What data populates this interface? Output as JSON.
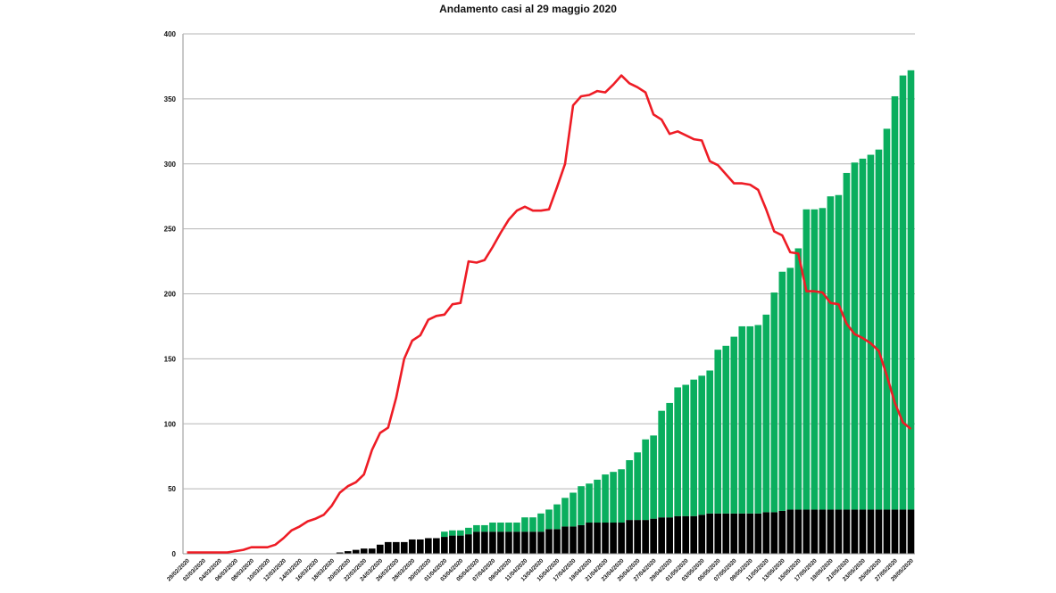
{
  "chart_data": {
    "type": "bar",
    "stacked": true,
    "title": "Andamento casi al  29 maggio 2020",
    "xlabel": "",
    "ylabel": "",
    "ylim": [
      0,
      400
    ],
    "y_ticks": [
      0,
      50,
      100,
      150,
      200,
      250,
      300,
      350,
      400
    ],
    "grid": true,
    "legend": "none",
    "x_tick_labels": [
      "29/02/2020",
      "02/03/2020",
      "04/03/2020",
      "06/03/2020",
      "08/03/2020",
      "10/03/2020",
      "12/03/2020",
      "14/03/2020",
      "16/03/2020",
      "18/03/2020",
      "20/03/2020",
      "22/03/2020",
      "24/03/2020",
      "26/03/2020",
      "28/03/2020",
      "30/03/2020",
      "01/04/2020",
      "03/04/2020",
      "05/04/2020",
      "07/04/2020",
      "09/04/2020",
      "11/04/2020",
      "13/04/2020",
      "15/04/2020",
      "17/04/2020",
      "19/04/2020",
      "21/04/2020",
      "23/04/2020",
      "25/04/2020",
      "27/04/2020",
      "29/04/2020",
      "01/05/2020",
      "03/05/2020",
      "05/05/2020",
      "07/05/2020",
      "09/05/2020",
      "11/05/2020",
      "13/05/2020",
      "15/05/2020",
      "17/05/2020",
      "19/05/2020",
      "21/05/2020",
      "23/05/2020",
      "25/05/2020",
      "27/05/2020",
      "29/05/2020"
    ],
    "series": [
      {
        "type": "bar",
        "color": "#000000",
        "values": [
          0,
          0,
          0,
          0,
          0,
          0,
          0,
          0,
          0,
          0,
          0,
          0,
          0,
          0,
          0,
          0,
          0,
          0,
          0,
          1,
          2,
          3,
          4,
          4,
          7,
          9,
          9,
          9,
          11,
          11,
          12,
          12,
          13,
          14,
          14,
          15,
          17,
          17,
          17,
          17,
          17,
          17,
          17,
          17,
          17,
          19,
          19,
          21,
          21,
          22,
          24,
          24,
          24,
          24,
          24,
          26,
          26,
          26,
          27,
          28,
          28,
          29,
          29,
          29,
          30,
          31,
          31,
          31,
          31,
          31,
          31,
          31,
          32,
          32,
          33,
          34,
          34,
          34,
          34,
          34,
          34,
          34,
          34,
          34,
          34,
          34,
          34,
          34,
          34,
          34,
          34
        ]
      },
      {
        "type": "bar",
        "color": "#0aae5e",
        "values": [
          0,
          0,
          0,
          0,
          0,
          0,
          0,
          0,
          0,
          0,
          0,
          0,
          0,
          0,
          0,
          0,
          0,
          0,
          0,
          0,
          0,
          0,
          0,
          0,
          0,
          0,
          0,
          0,
          0,
          0,
          0,
          0,
          4,
          4,
          4,
          5,
          5,
          5,
          7,
          7,
          7,
          7,
          11,
          11,
          14,
          15,
          19,
          22,
          26,
          30,
          30,
          33,
          37,
          39,
          41,
          46,
          52,
          62,
          64,
          82,
          88,
          99,
          101,
          105,
          107,
          110,
          126,
          129,
          136,
          144,
          144,
          145,
          152,
          169,
          184,
          186,
          201,
          231,
          231,
          232,
          241,
          242,
          259,
          267,
          270,
          273,
          277,
          293,
          318,
          334,
          338
        ]
      },
      {
        "type": "line",
        "color": "#ee1c25",
        "values": [
          1,
          1,
          1,
          1,
          1,
          1,
          2,
          3,
          5,
          5,
          5,
          7,
          12,
          18,
          21,
          25,
          27,
          30,
          37,
          47,
          52,
          55,
          61,
          80,
          93,
          97,
          120,
          150,
          164,
          168,
          180,
          183,
          184,
          192,
          193,
          225,
          224,
          226,
          236,
          247,
          257,
          264,
          267,
          264,
          264,
          265,
          282,
          300,
          345,
          352,
          353,
          356,
          355,
          361,
          368,
          362,
          359,
          355,
          338,
          334,
          323,
          325,
          322,
          319,
          318,
          302,
          299,
          292,
          285,
          285,
          284,
          280,
          265,
          248,
          245,
          232,
          231,
          202,
          202,
          201,
          193,
          192,
          177,
          169,
          166,
          162,
          156,
          137,
          116,
          101,
          96
        ]
      }
    ]
  }
}
